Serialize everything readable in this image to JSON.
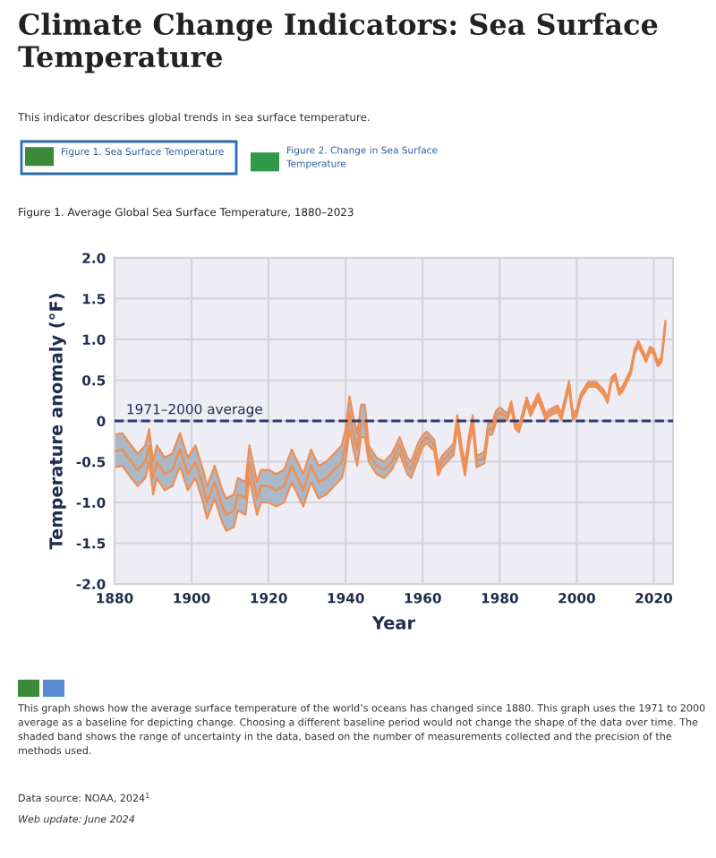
{
  "chart_data": {
    "type": "line",
    "title": "Climate Change Indicators: Sea Surface Temperature",
    "xlabel": "Year",
    "ylabel": "Temperature anomaly (°F)",
    "annotations": [
      "This indicator describes global trends in sea surface temperature.",
      "Figure 1. Sea Surface Temperature",
      "Figure 2. Change in Sea Surface\nTemperature",
      "Figure 1. Average Global Sea Surface Temperature, 1880–2023",
      "This graph shows how the average surface temperature of the world’s oceans has changed since 1880. This graph uses the 1971 to 2000 average as a baseline for depicting change. Choosing a different baseline period would not change the shape of the data over time. The shaded band shows the range of uncertainty in the data, based on the number of measurements collected and the precision of the methods used.",
      "Data source: NOAA, 2024$^{1}$",
      "Web update: June 2024"
    ],
    "x": [
      1880,
      1882,
      1884,
      1886,
      1888,
      1889,
      1890,
      1891,
      1893,
      1895,
      1897,
      1899,
      1901,
      1903,
      1904,
      1906,
      1908,
      1909,
      1911,
      1912,
      1914,
      1915,
      1917,
      1918,
      1920,
      1922,
      1924,
      1926,
      1928,
      1929,
      1931,
      1933,
      1935,
      1937,
      1939,
      1940,
      1941,
      1942,
      1943,
      1944,
      1945,
      1946,
      1948,
      1950,
      1952,
      1954,
      1956,
      1957,
      1959,
      1960,
      1961,
      1963,
      1964,
      1965,
      1967,
      1968,
      1969,
      1970,
      1971,
      1972,
      1973,
      1974,
      1976,
      1977,
      1978,
      1979,
      1980,
      1982,
      1983,
      1984,
      1985,
      1987,
      1988,
      1990,
      1992,
      1993,
      1995,
      1996,
      1997,
      1998,
      1999,
      2000,
      2001,
      2003,
      2005,
      2007,
      2008,
      2009,
      2010,
      2011,
      2012,
      2014,
      2015,
      2016,
      2017,
      2018,
      2019,
      2020,
      2021,
      2022,
      2023
    ],
    "series": [
      {
        "color": "#ee8f55",
        "values": [
          -0.37,
          -0.35,
          -0.48,
          -0.6,
          -0.5,
          -0.3,
          -0.7,
          -0.5,
          -0.65,
          -0.6,
          -0.35,
          -0.65,
          -0.5,
          -0.8,
          -1.0,
          -0.75,
          -1.05,
          -1.15,
          -1.1,
          -0.9,
          -0.95,
          -0.5,
          -0.95,
          -0.8,
          -0.8,
          -0.85,
          -0.8,
          -0.55,
          -0.75,
          -0.85,
          -0.55,
          -0.75,
          -0.7,
          -0.6,
          -0.5,
          -0.3,
          0.1,
          -0.15,
          -0.35,
          0.0,
          0.0,
          -0.4,
          -0.55,
          -0.6,
          -0.5,
          -0.3,
          -0.55,
          -0.6,
          -0.35,
          -0.25,
          -0.2,
          -0.3,
          -0.6,
          -0.5,
          -0.4,
          -0.35,
          0.0,
          -0.35,
          -0.6,
          -0.25,
          0.0,
          -0.5,
          -0.45,
          -0.1,
          -0.1,
          0.05,
          0.1,
          0.05,
          0.2,
          -0.05,
          -0.1,
          0.25,
          0.1,
          0.3,
          0.05,
          0.1,
          0.15,
          0.05,
          0.25,
          0.45,
          0.05,
          0.1,
          0.3,
          0.45,
          0.45,
          0.35,
          0.25,
          0.5,
          0.55,
          0.35,
          0.4,
          0.6,
          0.85,
          0.95,
          0.85,
          0.75,
          0.88,
          0.85,
          0.7,
          0.75,
          1.2
        ],
        "lower": [
          -0.57,
          -0.55,
          -0.68,
          -0.8,
          -0.7,
          -0.5,
          -0.9,
          -0.7,
          -0.85,
          -0.8,
          -0.55,
          -0.85,
          -0.7,
          -1.0,
          -1.2,
          -0.95,
          -1.25,
          -1.35,
          -1.3,
          -1.1,
          -1.15,
          -0.7,
          -1.15,
          -1.0,
          -1.0,
          -1.05,
          -1.0,
          -0.75,
          -0.95,
          -1.05,
          -0.75,
          -0.95,
          -0.9,
          -0.8,
          -0.7,
          -0.5,
          -0.1,
          -0.35,
          -0.55,
          -0.2,
          -0.2,
          -0.5,
          -0.65,
          -0.7,
          -0.6,
          -0.4,
          -0.65,
          -0.7,
          -0.45,
          -0.32,
          -0.27,
          -0.37,
          -0.67,
          -0.57,
          -0.47,
          -0.42,
          -0.07,
          -0.42,
          -0.67,
          -0.32,
          -0.07,
          -0.57,
          -0.52,
          -0.17,
          -0.17,
          -0.02,
          0.03,
          0.01,
          0.16,
          -0.09,
          -0.14,
          0.21,
          0.06,
          0.26,
          0.01,
          0.06,
          0.11,
          0.01,
          0.21,
          0.41,
          0.01,
          0.06,
          0.27,
          0.42,
          0.42,
          0.32,
          0.22,
          0.47,
          0.52,
          0.32,
          0.37,
          0.57,
          0.82,
          0.92,
          0.82,
          0.72,
          0.85,
          0.82,
          0.67,
          0.72,
          1.17
        ],
        "upper": [
          -0.17,
          -0.15,
          -0.28,
          -0.4,
          -0.3,
          -0.1,
          -0.5,
          -0.3,
          -0.45,
          -0.4,
          -0.15,
          -0.45,
          -0.3,
          -0.6,
          -0.8,
          -0.55,
          -0.85,
          -0.95,
          -0.9,
          -0.7,
          -0.75,
          -0.3,
          -0.75,
          -0.6,
          -0.6,
          -0.65,
          -0.6,
          -0.35,
          -0.55,
          -0.65,
          -0.35,
          -0.55,
          -0.5,
          -0.4,
          -0.3,
          -0.1,
          0.3,
          0.05,
          -0.15,
          0.2,
          0.2,
          -0.3,
          -0.45,
          -0.5,
          -0.4,
          -0.2,
          -0.45,
          -0.5,
          -0.25,
          -0.18,
          -0.13,
          -0.23,
          -0.53,
          -0.43,
          -0.33,
          -0.28,
          0.07,
          -0.28,
          -0.53,
          -0.18,
          0.07,
          -0.43,
          -0.38,
          -0.03,
          -0.03,
          0.12,
          0.17,
          0.09,
          0.24,
          -0.01,
          -0.06,
          0.29,
          0.14,
          0.34,
          0.09,
          0.14,
          0.19,
          0.09,
          0.29,
          0.49,
          0.09,
          0.14,
          0.33,
          0.48,
          0.48,
          0.38,
          0.28,
          0.53,
          0.58,
          0.38,
          0.43,
          0.63,
          0.88,
          0.98,
          0.88,
          0.78,
          0.91,
          0.88,
          0.73,
          0.78,
          1.23
        ]
      }
    ],
    "xlim": [
      1880,
      2025
    ],
    "xticks": [
      1880,
      1900,
      1920,
      1940,
      1960,
      1980,
      2000,
      2020
    ],
    "ylim": [
      -2.0,
      2.0
    ],
    "yticks": [
      {
        "value": -2.0,
        "label": "-2.0"
      },
      {
        "value": -1.5,
        "label": "-1.5"
      },
      {
        "value": -1.0,
        "label": "-1.0"
      },
      {
        "value": -0.5,
        "label": "-0.5"
      },
      0,
      {
        "value": 0.5,
        "label": "0.5"
      },
      {
        "value": 1.0,
        "label": "1.0"
      },
      {
        "value": 1.5,
        "label": "1.5"
      },
      {
        "value": 2.0,
        "label": "2.0"
      }
    ],
    "ref_lines": [
      {
        "axis": "y",
        "value": 0,
        "label": "1971–2000 average",
        "color": "#2f3b6b",
        "line_style": "dashed"
      }
    ],
    "grid": true,
    "line_style": "solid"
  }
}
